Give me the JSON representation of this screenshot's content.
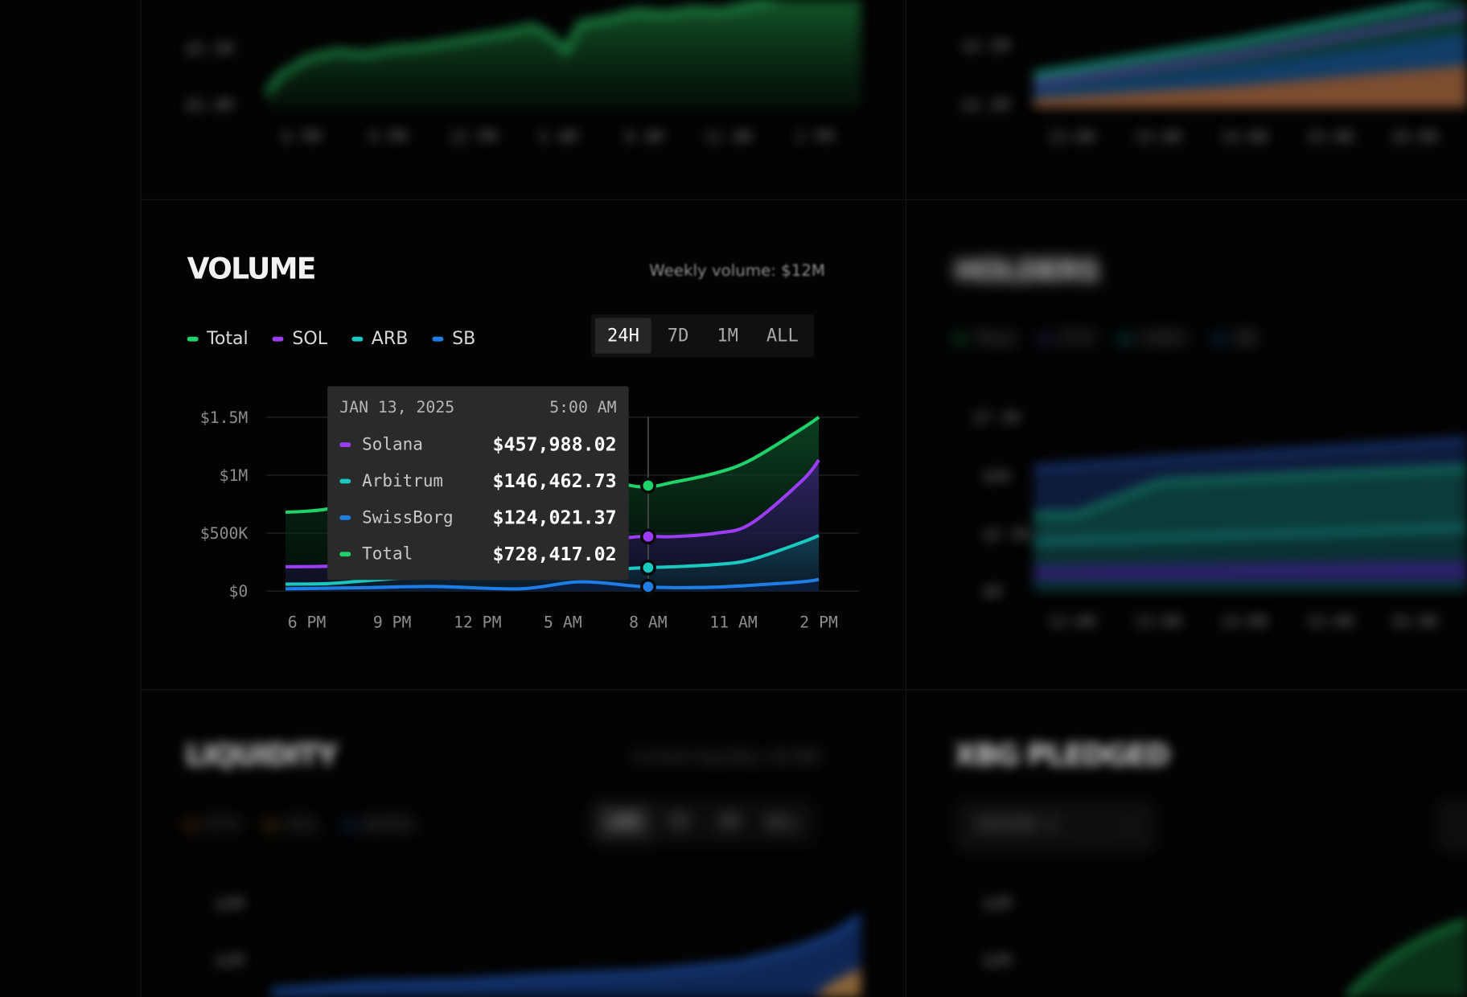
{
  "volume_panel": {
    "title": "VOLUME",
    "subtitle": "Weekly volume: $12M",
    "legend": [
      {
        "label": "Total",
        "color": "#1fd26a"
      },
      {
        "label": "SOL",
        "color": "#9b3df5"
      },
      {
        "label": "ARB",
        "color": "#19c8c0"
      },
      {
        "label": "SB",
        "color": "#1f7de6"
      }
    ],
    "range_tabs": [
      {
        "label": "24H",
        "active": true
      },
      {
        "label": "7D",
        "active": false
      },
      {
        "label": "1M",
        "active": false
      },
      {
        "label": "ALL",
        "active": false
      }
    ],
    "tooltip": {
      "date": "JAN 13, 2025",
      "time": "5:00 AM",
      "rows": [
        {
          "name": "Solana",
          "value": "$457,988.02",
          "color": "#9b3df5"
        },
        {
          "name": "Arbitrum",
          "value": "$146,462.73",
          "color": "#19c8c0"
        },
        {
          "name": "SwissBorg",
          "value": "$124,021.37",
          "color": "#1f7de6"
        },
        {
          "name": "Total",
          "value": "$728,417.02",
          "color": "#1fd26a"
        }
      ]
    }
  },
  "holders_panel": {
    "title": "HOLDERS",
    "legend": [
      "Total",
      "ETH",
      "USDC",
      "SB"
    ],
    "y_ticks": [
      "$7.5K",
      "$5K",
      "$2.5K",
      "$0"
    ],
    "x_ticks": [
      "12:00",
      "13:00",
      "14:00",
      "15:00",
      "16:00"
    ]
  },
  "liquidity_panel": {
    "title": "LIQUIDITY",
    "subtitle": "Current liquidity: $5.8M",
    "legend": [
      "ETH",
      "SOL",
      "BORG"
    ],
    "range_tabs": [
      "24H",
      "7D",
      "1M",
      "ALL"
    ],
    "y_ticks": [
      "$3M",
      "$2M"
    ]
  },
  "pledged_panel": {
    "title": "XBG PLEDGED",
    "season_select": "SEASON 3",
    "y_ticks": [
      "$3M",
      "$2M"
    ]
  },
  "top_left_panel": {
    "y_ticks": [
      "$5.5M",
      "$5.4M"
    ],
    "x_ticks": [
      "6 PM",
      "9 PM",
      "12 PM",
      "5 AM",
      "8 AM",
      "11 AM",
      "2 PM"
    ]
  },
  "top_right_panel": {
    "y_ticks": [
      "$3.5M",
      "$2.5M"
    ],
    "x_ticks": [
      "12:00",
      "13:00",
      "14:00",
      "15:00",
      "16:00"
    ]
  },
  "chart_data": {
    "type": "area",
    "title": "VOLUME",
    "subtitle": "Weekly volume: $12M",
    "x": [
      "6 PM",
      "9 PM",
      "12 PM",
      "5 AM",
      "8 AM",
      "11 AM",
      "2 PM"
    ],
    "x_index": [
      0,
      1,
      2,
      3,
      4,
      5,
      6
    ],
    "y_ticks": [
      "$0",
      "$500K",
      "$1M",
      "$1.5M"
    ],
    "ylim": [
      0,
      1500000
    ],
    "grid": true,
    "legend_position": "top-left",
    "series": [
      {
        "name": "Total",
        "color": "#1fd26a",
        "x": [
          -0.25,
          0.25,
          0.7,
          1.5,
          2.5,
          3.2,
          3.9,
          4.3,
          4.8,
          5.2,
          5.8,
          6.0
        ],
        "values": [
          680000,
          710000,
          830000,
          1000000,
          1040000,
          1000000,
          900000,
          940000,
          1020000,
          1130000,
          1400000,
          1500000
        ]
      },
      {
        "name": "SOL",
        "color": "#9b3df5",
        "x": [
          -0.25,
          0.25,
          0.7,
          1.5,
          2.5,
          3.2,
          3.9,
          4.3,
          4.8,
          5.2,
          5.8,
          6.0
        ],
        "values": [
          210000,
          215000,
          240000,
          310000,
          380000,
          420000,
          470000,
          470000,
          500000,
          580000,
          950000,
          1130000
        ]
      },
      {
        "name": "ARB",
        "color": "#19c8c0",
        "x": [
          -0.25,
          0.25,
          0.7,
          1.5,
          2.5,
          3.2,
          3.9,
          4.3,
          4.8,
          5.2,
          5.8,
          6.0
        ],
        "values": [
          60000,
          65000,
          90000,
          130000,
          160000,
          170000,
          200000,
          210000,
          230000,
          270000,
          420000,
          480000
        ]
      },
      {
        "name": "SB",
        "color": "#1f7de6",
        "x": [
          -0.25,
          0.25,
          0.7,
          1.5,
          2.5,
          3.2,
          3.9,
          4.3,
          4.8,
          5.2,
          5.8,
          6.0
        ],
        "values": [
          20000,
          25000,
          30000,
          40000,
          20000,
          80000,
          40000,
          30000,
          35000,
          50000,
          80000,
          100000
        ]
      }
    ],
    "hover_x_index": 4,
    "hover_values": {
      "SOL": 457988.02,
      "ARB": 146462.73,
      "SB": 124021.37,
      "Total": 728417.02
    }
  }
}
